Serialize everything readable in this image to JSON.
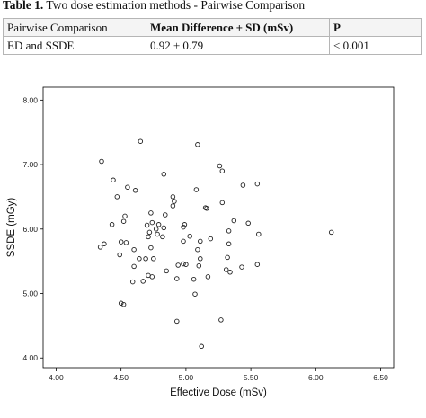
{
  "caption": {
    "label": "Table 1.",
    "text": " Two dose estimation methods - Pairwise Comparison"
  },
  "table": {
    "headers": [
      "Pairwise Comparison",
      "Mean Difference ± SD (mSv)",
      "P"
    ],
    "rows": [
      [
        "ED and SSDE",
        "0.92 ± 0.79",
        "< 0.001"
      ]
    ]
  },
  "chart_data": {
    "type": "scatter",
    "xlabel": "Effective Dose (mSv)",
    "ylabel": "SSDE (mGy)",
    "xlim": [
      3.9,
      6.6
    ],
    "ylim": [
      3.85,
      8.2
    ],
    "xticks": [
      "4.00",
      "4.50",
      "5.00",
      "5.50",
      "6.00",
      "6.50"
    ],
    "yticks": [
      "4.00",
      "5.00",
      "6.00",
      "7.00",
      "8.00"
    ],
    "grid": false,
    "points": [
      [
        4.65,
        7.36
      ],
      [
        5.09,
        7.31
      ],
      [
        4.35,
        7.05
      ],
      [
        5.26,
        6.98
      ],
      [
        4.83,
        6.85
      ],
      [
        4.44,
        6.76
      ],
      [
        5.28,
        6.9
      ],
      [
        4.55,
        6.65
      ],
      [
        5.08,
        6.61
      ],
      [
        4.61,
        6.6
      ],
      [
        5.44,
        6.68
      ],
      [
        5.55,
        6.7
      ],
      [
        4.47,
        6.5
      ],
      [
        4.9,
        6.5
      ],
      [
        4.91,
        6.43
      ],
      [
        5.28,
        6.41
      ],
      [
        4.9,
        6.36
      ],
      [
        5.15,
        6.33
      ],
      [
        5.16,
        6.32
      ],
      [
        4.73,
        6.25
      ],
      [
        4.84,
        6.22
      ],
      [
        4.53,
        6.2
      ],
      [
        5.37,
        6.13
      ],
      [
        4.52,
        6.12
      ],
      [
        4.74,
        6.1
      ],
      [
        4.99,
        6.07
      ],
      [
        5.48,
        6.09
      ],
      [
        4.7,
        6.06
      ],
      [
        4.79,
        6.07
      ],
      [
        4.43,
        6.07
      ],
      [
        4.98,
        6.03
      ],
      [
        4.83,
        6.02
      ],
      [
        4.77,
        6.0
      ],
      [
        4.72,
        5.95
      ],
      [
        5.33,
        5.97
      ],
      [
        6.12,
        5.95
      ],
      [
        4.78,
        5.92
      ],
      [
        5.56,
        5.92
      ],
      [
        4.82,
        5.88
      ],
      [
        5.03,
        5.89
      ],
      [
        4.71,
        5.88
      ],
      [
        5.19,
        5.85
      ],
      [
        4.98,
        5.81
      ],
      [
        5.11,
        5.81
      ],
      [
        4.54,
        5.79
      ],
      [
        4.37,
        5.77
      ],
      [
        4.34,
        5.72
      ],
      [
        4.6,
        5.68
      ],
      [
        4.5,
        5.8
      ],
      [
        5.33,
        5.77
      ],
      [
        4.73,
        5.71
      ],
      [
        5.09,
        5.68
      ],
      [
        4.49,
        5.6
      ],
      [
        4.69,
        5.54
      ],
      [
        4.75,
        5.54
      ],
      [
        4.64,
        5.54
      ],
      [
        5.11,
        5.54
      ],
      [
        5.32,
        5.56
      ],
      [
        4.6,
        5.42
      ],
      [
        4.98,
        5.46
      ],
      [
        5.0,
        5.45
      ],
      [
        4.94,
        5.44
      ],
      [
        5.1,
        5.43
      ],
      [
        5.55,
        5.45
      ],
      [
        5.31,
        5.37
      ],
      [
        5.34,
        5.33
      ],
      [
        5.43,
        5.41
      ],
      [
        4.85,
        5.35
      ],
      [
        4.71,
        5.28
      ],
      [
        4.74,
        5.26
      ],
      [
        5.17,
        5.26
      ],
      [
        5.06,
        5.22
      ],
      [
        4.93,
        5.23
      ],
      [
        4.67,
        5.19
      ],
      [
        4.59,
        5.18
      ],
      [
        5.07,
        4.99
      ],
      [
        4.5,
        4.85
      ],
      [
        4.52,
        4.83
      ],
      [
        4.93,
        4.57
      ],
      [
        5.27,
        4.59
      ],
      [
        5.12,
        4.18
      ]
    ]
  }
}
